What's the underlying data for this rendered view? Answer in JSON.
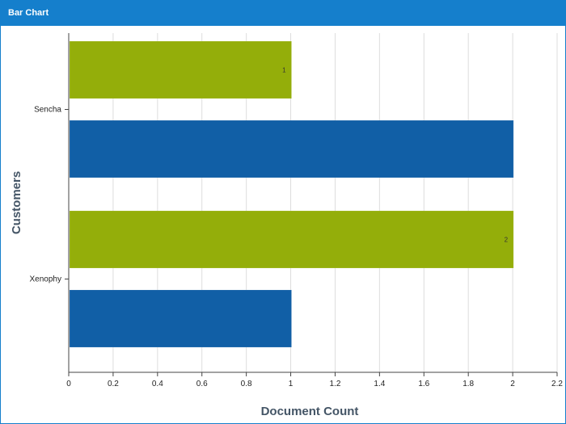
{
  "window": {
    "title": "Bar Chart"
  },
  "chart_data": {
    "type": "bar",
    "orientation": "horizontal",
    "title": "",
    "xlabel": "Document Count",
    "ylabel": "Customers",
    "xlim": [
      0,
      2.2
    ],
    "x_ticks": [
      "0",
      "0.2",
      "0.4",
      "0.6",
      "0.8",
      "1",
      "1.2",
      "1.4",
      "1.6",
      "1.8",
      "2",
      "2.2"
    ],
    "grid": true,
    "categories": [
      "Sencha",
      "Xenophy"
    ],
    "series": [
      {
        "color": "#94ae0a",
        "values": [
          1,
          2
        ],
        "labels": [
          "1",
          "2"
        ]
      },
      {
        "color": "#115fa6",
        "values": [
          2,
          1
        ],
        "labels": [
          "",
          ""
        ]
      }
    ]
  }
}
